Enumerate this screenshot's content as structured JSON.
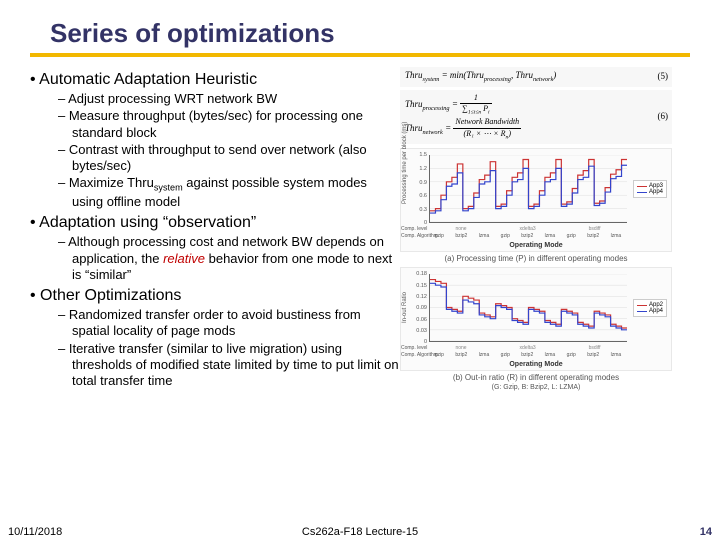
{
  "title": "Series of optimizations",
  "bullets": {
    "h1": "Automatic Adaptation Heuristic",
    "h1_items": [
      "Adjust processing WRT network BW",
      "Measure throughput (bytes/sec) for processing one standard block",
      "Contrast with throughput to send over network (also bytes/sec)",
      "Maximize Thru<sub>system</sub> against possible system modes using offline model"
    ],
    "h2": "Adaptation using “observation”",
    "h2_items": [
      "Although processing cost and network BW depends on application, the <span class=\"relative\">relative</span> behavior from one mode to next is “similar”"
    ],
    "h3": "Other Optimizations",
    "h3_items": [
      "Randomized transfer order to avoid bustiness from spatial locality of page mods",
      "Iterative transfer (similar to live migration) using thresholds of modified state limited by time to put limit on total transfer time"
    ]
  },
  "eq5": "Thru<sub>system</sub> = min(Thru<sub>processing</sub>, Thru<sub>network</sub>)",
  "eq5_num": "(5)",
  "eq6_lhs": "Thru<sub>processing</sub> =",
  "eq6_frac_n": "1",
  "eq6_frac_d": "∑<sub>1≤i≤n</sub> P<sub>i</sub>",
  "eq6b_lhs": "Thru<sub>network</sub> =",
  "eq6b_frac_n": "Network Bandwidth",
  "eq6b_frac_d": "(R₁ × ⋯ × R<sub>n</sub>)",
  "eq6_num": "(6)",
  "chart_a": {
    "title": "(a) Processing time (P) in different operating modes",
    "ylabel": "Processing time per block (ms)",
    "xlabel": "Operating Mode",
    "yticks": [
      "0",
      "0.3",
      "0.6",
      "0.9",
      "1.2",
      "1.5"
    ],
    "ylim": [
      0,
      1.5
    ],
    "row_labels": [
      "Comp. level",
      "Comp. Algorithm",
      "Diff. Algorithm"
    ],
    "categories": [
      "gzip",
      "bzip2",
      "lzma",
      "gzip",
      "bzip2",
      "lzma",
      "gzip",
      "bzip2",
      "lzma"
    ],
    "sub_cats": [
      "none",
      "xdelta3",
      "bsdiff"
    ],
    "series": [
      {
        "name": "App3",
        "color": "#cc3333",
        "values": [
          0.25,
          0.3,
          0.6,
          0.9,
          1.0,
          1.3,
          0.3,
          0.35,
          0.65,
          0.95,
          1.05,
          1.35,
          0.35,
          0.4,
          0.7,
          1.0,
          1.1,
          1.4,
          0.35,
          0.4,
          0.7,
          1.0,
          1.1,
          1.4,
          0.4,
          0.45,
          0.75,
          1.05,
          1.15,
          1.4,
          0.42,
          0.47,
          0.77,
          1.07,
          1.17,
          1.4
        ]
      },
      {
        "name": "App4",
        "color": "#3344cc",
        "values": [
          0.2,
          0.25,
          0.5,
          0.8,
          0.85,
          1.1,
          0.25,
          0.3,
          0.55,
          0.85,
          0.9,
          1.15,
          0.3,
          0.35,
          0.6,
          0.9,
          0.95,
          1.2,
          0.3,
          0.35,
          0.6,
          0.9,
          0.95,
          1.2,
          0.35,
          0.4,
          0.65,
          0.95,
          1.0,
          1.25,
          0.37,
          0.42,
          0.67,
          0.97,
          1.02,
          1.27
        ]
      }
    ]
  },
  "chart_b": {
    "title": "(b) Out-in ratio (R) in different operating modes",
    "ylabel": "In-out Ratio",
    "xlabel": "Operating Mode",
    "yticks": [
      "0",
      "0.03",
      "0.06",
      "0.09",
      "0.12",
      "0.15",
      "0.18"
    ],
    "ylim": [
      0,
      0.18
    ],
    "row_labels": [
      "Comp. level",
      "Comp. Algorithm",
      "Diff. Algorithm"
    ],
    "categories": [
      "gzip",
      "bzip2",
      "lzma",
      "gzip",
      "bzip2",
      "lzma",
      "gzip",
      "bzip2",
      "lzma"
    ],
    "sub_cats": [
      "none",
      "xdelta3",
      "bsdiff"
    ],
    "sub_numbers": "1 3 5 7 9 2 4 6 8 1 3 5 7 9 2 4 6 8 1 3 5 7 9 2 4 6 8 1 3 5 7",
    "series": [
      {
        "name": "App2",
        "color": "#cc3333",
        "values": [
          0.165,
          0.16,
          0.155,
          0.09,
          0.085,
          0.08,
          0.12,
          0.115,
          0.11,
          0.075,
          0.07,
          0.065,
          0.1,
          0.095,
          0.09,
          0.06,
          0.055,
          0.05,
          0.09,
          0.085,
          0.08,
          0.055,
          0.05,
          0.045,
          0.085,
          0.08,
          0.075,
          0.05,
          0.045,
          0.04,
          0.08,
          0.075,
          0.07,
          0.045,
          0.04,
          0.035
        ]
      },
      {
        "name": "App4",
        "color": "#3344cc",
        "values": [
          0.155,
          0.15,
          0.145,
          0.085,
          0.08,
          0.075,
          0.11,
          0.105,
          0.1,
          0.07,
          0.065,
          0.06,
          0.095,
          0.09,
          0.085,
          0.055,
          0.05,
          0.045,
          0.085,
          0.08,
          0.075,
          0.05,
          0.045,
          0.04,
          0.08,
          0.075,
          0.07,
          0.045,
          0.04,
          0.035,
          0.075,
          0.07,
          0.065,
          0.04,
          0.035,
          0.03
        ]
      }
    ],
    "footnote": "(G: Gzip, B: Bzip2, L: LZMA)"
  },
  "footer": {
    "date": "10/11/2018",
    "mid": "Cs262a-F18 Lecture-15",
    "page": "14"
  },
  "colors": {
    "title": "#333366",
    "underline": "#f2b800",
    "series1": "#cc3333",
    "series2": "#3344cc"
  }
}
